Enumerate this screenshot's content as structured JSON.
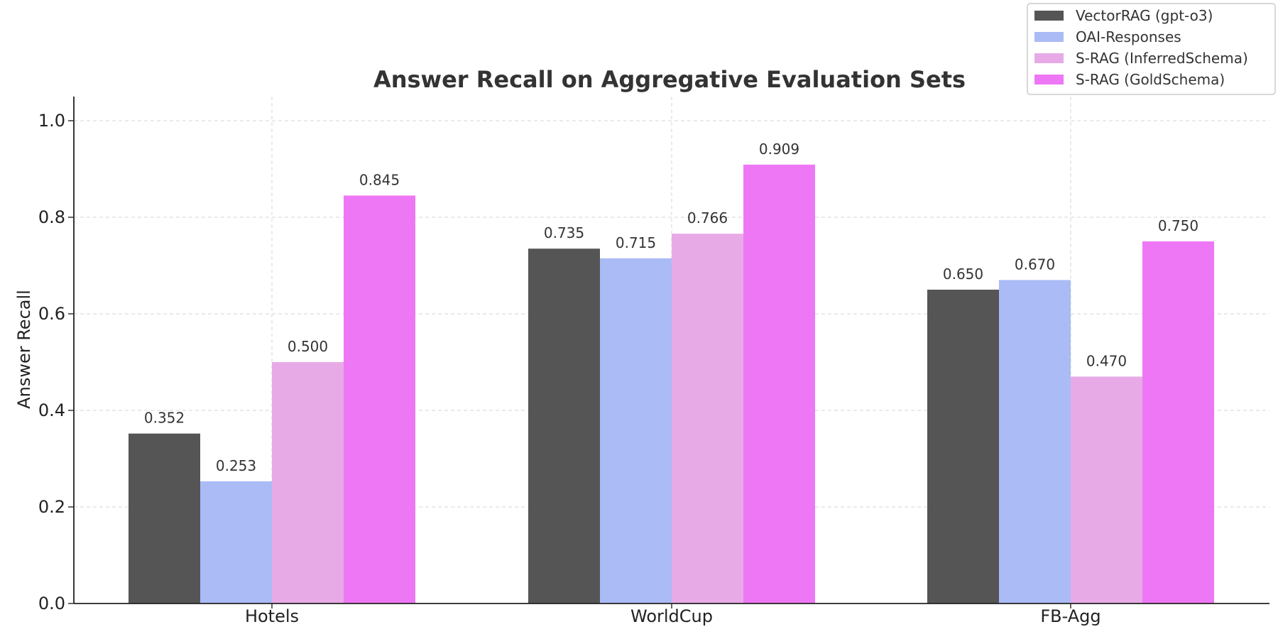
{
  "chart_data": {
    "type": "bar",
    "title": "Answer Recall on Aggregative Evaluation Sets",
    "xlabel": "",
    "ylabel": "Answer Recall",
    "ylim": [
      0,
      1.05
    ],
    "yticks": [
      "0.0",
      "0.2",
      "0.4",
      "0.6",
      "0.8",
      "1.0"
    ],
    "grid": true,
    "legend_position": "top-right",
    "categories": [
      "Hotels",
      "WorldCup",
      "FB-Agg"
    ],
    "series": [
      {
        "name": "VectorRAG (gpt-o3)",
        "color": "#555555",
        "values": [
          0.352,
          0.735,
          0.65
        ],
        "labels": [
          "0.352",
          "0.735",
          "0.650"
        ]
      },
      {
        "name": "OAI-Responses",
        "color": "#aabbf5",
        "values": [
          0.253,
          0.715,
          0.67
        ],
        "labels": [
          "0.253",
          "0.715",
          "0.670"
        ]
      },
      {
        "name": "S-RAG (InferredSchema)",
        "color": "#e8aae6",
        "values": [
          0.5,
          0.766,
          0.47
        ],
        "labels": [
          "0.500",
          "0.766",
          "0.470"
        ]
      },
      {
        "name": "S-RAG (GoldSchema)",
        "color": "#ee77f5",
        "values": [
          0.845,
          0.909,
          0.75
        ],
        "labels": [
          "0.845",
          "0.909",
          "0.750"
        ]
      }
    ]
  }
}
